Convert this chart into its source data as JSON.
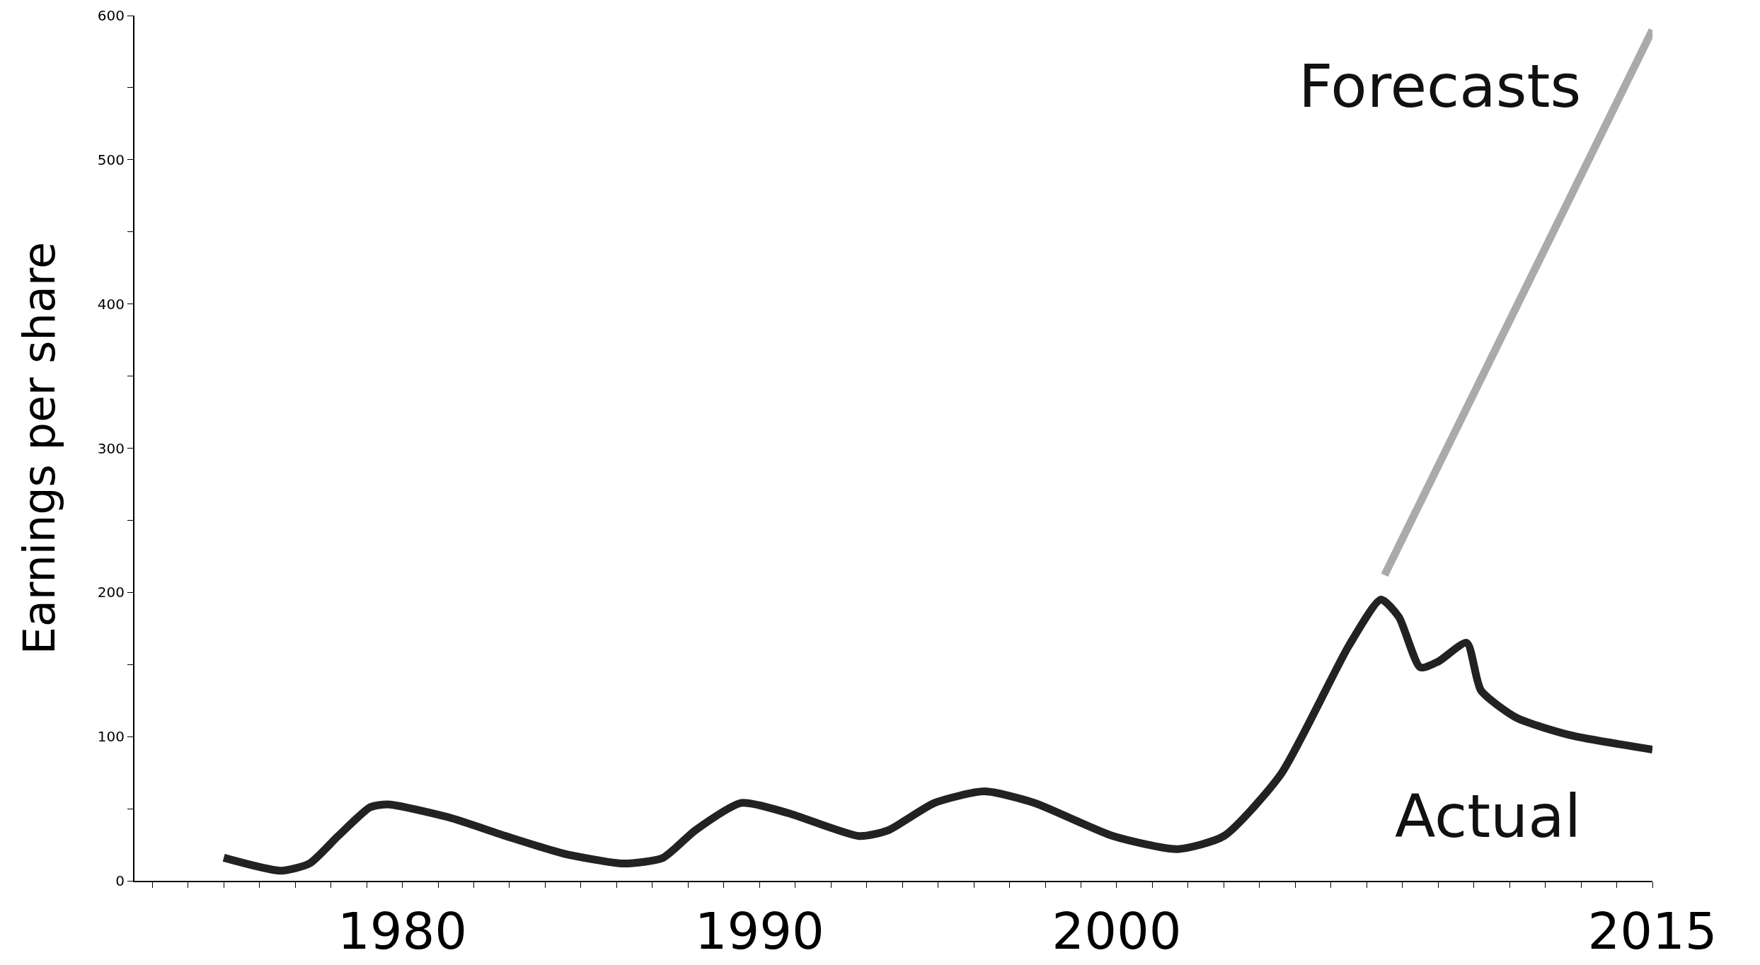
{
  "chart_data": {
    "type": "line",
    "ylabel": "Earnings per share",
    "series": [
      {
        "color": "#222222",
        "x": [
          1975,
          1976.6,
          1977.4,
          1978.2,
          1979.1,
          1979.6,
          1981.3,
          1982.9,
          1984.5,
          1986.2,
          1987.3,
          1988.2,
          1989.5,
          1990.8,
          1992.8,
          1993.6,
          1994.9,
          1996.3,
          1997.7,
          1999.9,
          2001.7,
          2003.0,
          2004.6,
          2006.5,
          2007.4,
          2007.9,
          2008.5,
          2009.0,
          2009.8,
          2010.2,
          2011.2,
          2012.7,
          2015
        ],
        "values": [
          16,
          7,
          12,
          31,
          51,
          53,
          44,
          31,
          19,
          12,
          16,
          35,
          54,
          47,
          31,
          35,
          54,
          62,
          54,
          31,
          22,
          31,
          74,
          163,
          195,
          183,
          148,
          152,
          165,
          132,
          113,
          101,
          91
        ]
      },
      {
        "color": "#aaaaaa",
        "x": [
          2007.5,
          2015
        ],
        "values": [
          212,
          590
        ]
      }
    ],
    "annotations": [
      "Forecasts",
      "Actual"
    ],
    "xlim": [
      1972.5,
      2015
    ],
    "xticks": [
      {
        "value": 1973,
        "label": null
      },
      {
        "value": 1974,
        "label": null
      },
      {
        "value": 1975,
        "label": null
      },
      {
        "value": 1976,
        "label": null
      },
      {
        "value": 1977,
        "label": null
      },
      {
        "value": 1978,
        "label": null
      },
      {
        "value": 1979,
        "label": null
      },
      1980,
      {
        "value": 1981,
        "label": null
      },
      {
        "value": 1982,
        "label": null
      },
      {
        "value": 1983,
        "label": null
      },
      {
        "value": 1984,
        "label": null
      },
      {
        "value": 1985,
        "label": null
      },
      {
        "value": 1986,
        "label": null
      },
      {
        "value": 1987,
        "label": null
      },
      {
        "value": 1988,
        "label": null
      },
      {
        "value": 1989,
        "label": null
      },
      1990,
      {
        "value": 1991,
        "label": null
      },
      {
        "value": 1992,
        "label": null
      },
      {
        "value": 1993,
        "label": null
      },
      {
        "value": 1994,
        "label": null
      },
      {
        "value": 1995,
        "label": null
      },
      {
        "value": 1996,
        "label": null
      },
      {
        "value": 1997,
        "label": null
      },
      {
        "value": 1998,
        "label": null
      },
      {
        "value": 1999,
        "label": null
      },
      2000,
      {
        "value": 2001,
        "label": null
      },
      {
        "value": 2002,
        "label": null
      },
      {
        "value": 2003,
        "label": null
      },
      {
        "value": 2004,
        "label": null
      },
      {
        "value": 2005,
        "label": null
      },
      {
        "value": 2006,
        "label": null
      },
      {
        "value": 2007,
        "label": null
      },
      {
        "value": 2008,
        "label": null
      },
      {
        "value": 2009,
        "label": null
      },
      {
        "value": 2010,
        "label": null
      },
      {
        "value": 2011,
        "label": null
      },
      {
        "value": 2012,
        "label": null
      },
      {
        "value": 2013,
        "label": null
      },
      {
        "value": 2014,
        "label": null
      },
      2015
    ],
    "ylim": [
      0,
      600
    ],
    "yticks": [
      0,
      {
        "value": 50,
        "label": null
      },
      100,
      {
        "value": 150,
        "label": null
      },
      200,
      {
        "value": 250,
        "label": null
      },
      300,
      {
        "value": 350,
        "label": null
      },
      400,
      {
        "value": 450,
        "label": null
      },
      500,
      {
        "value": 550,
        "label": null
      },
      600
    ],
    "marker": "none",
    "line_style": "solid"
  }
}
